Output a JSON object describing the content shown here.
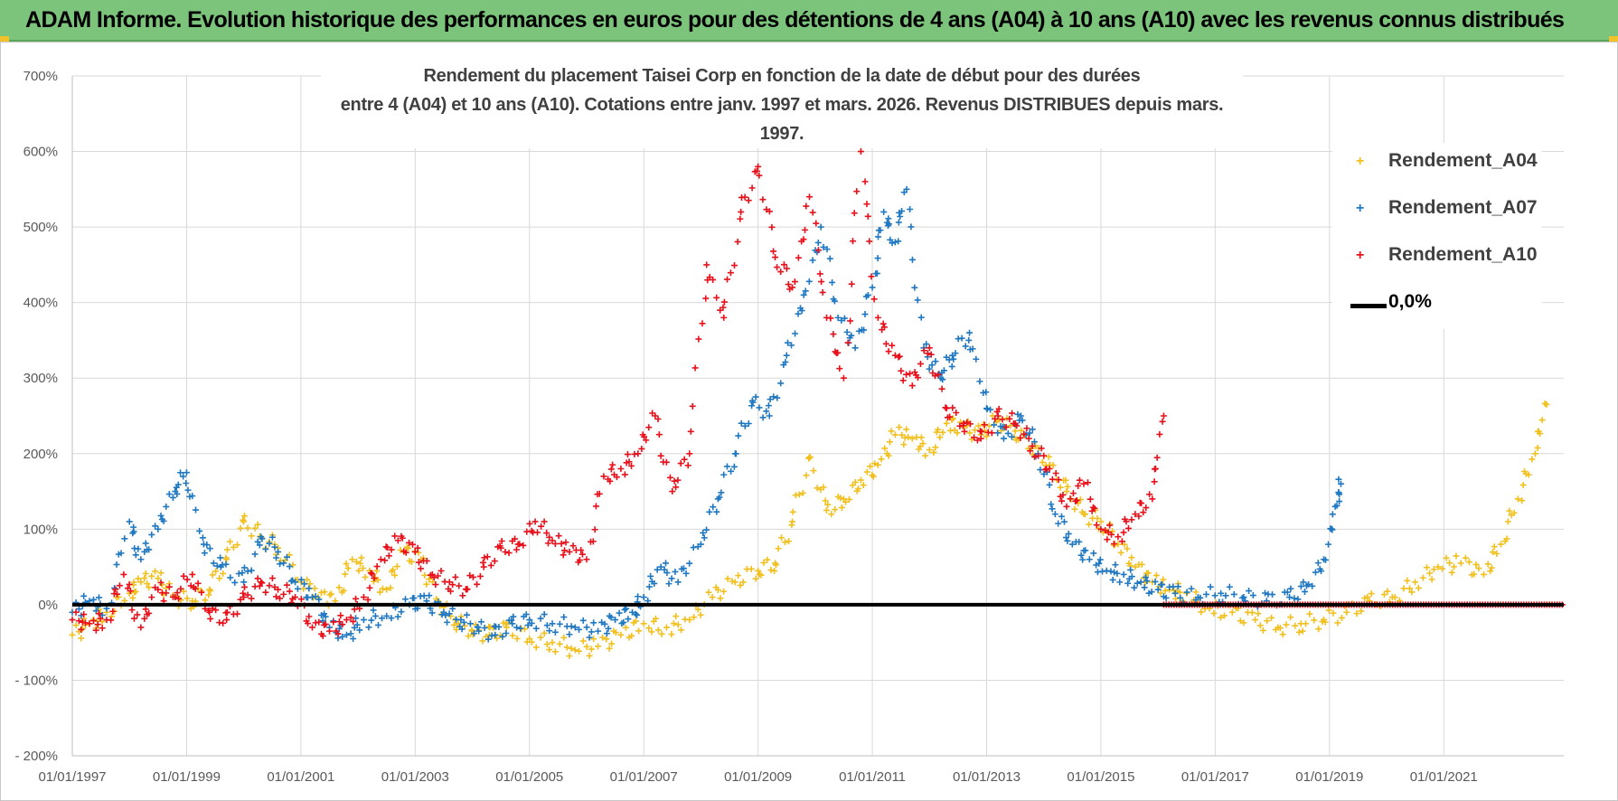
{
  "banner": {
    "title": "ADAM Informe. Evolution historique des performances en euros pour des détentions de 4 ans (A04) à 10 ans (A10) avec les revenus connus distribués"
  },
  "colors": {
    "banner_bg": "#7cc47c",
    "a04": "#f2c01e",
    "a07": "#1f78c1",
    "a10": "#e8101b",
    "zero": "#000000",
    "grid": "#d9d9d9"
  },
  "chart_data": {
    "type": "scatter",
    "title_line1": "Rendement du placement Taisei Corp en fonction de la date de début pour des durées",
    "title_line2": "entre 4 (A04) et 10 ans (A10). Cotations entre janv. 1997 et mars. 2026. Revenus DISTRIBUES depuis mars. 1997.",
    "x_unit": "year",
    "xlim": [
      1997.0,
      2023.1
    ],
    "ylim": [
      -200,
      700
    ],
    "y_ticks": [
      -200,
      -100,
      0,
      100,
      200,
      300,
      400,
      500,
      600,
      700
    ],
    "y_tick_labels": [
      "- 200%",
      "- 100%",
      "0%",
      "100%",
      "200%",
      "300%",
      "400%",
      "500%",
      "600%",
      "700%"
    ],
    "x_ticks": [
      1997,
      1999,
      2001,
      2003,
      2005,
      2007,
      2009,
      2011,
      2013,
      2015,
      2017,
      2019,
      2021
    ],
    "x_tick_labels": [
      "01/01/1997",
      "01/01/1999",
      "01/01/2001",
      "01/01/2003",
      "01/01/2005",
      "01/01/2007",
      "01/01/2009",
      "01/01/2011",
      "01/01/2013",
      "01/01/2015",
      "01/01/2017",
      "01/01/2019",
      "01/01/2021"
    ],
    "legend": [
      {
        "name": "Rendement_A04",
        "marker": "+"
      },
      {
        "name": "Rendement_A07",
        "marker": "+"
      },
      {
        "name": "Rendement_A10",
        "marker": "+"
      },
      {
        "name": "0,0%",
        "marker": "line"
      }
    ],
    "series": [
      {
        "name": "Rendement_A04",
        "x": [
          1997.0,
          1997.3,
          1997.6,
          1998.0,
          1998.2,
          1998.5,
          1998.8,
          1999.1,
          1999.4,
          1999.7,
          2000.0,
          2000.3,
          2000.6,
          2001.0,
          2001.3,
          2001.6,
          2001.9,
          2002.2,
          2002.5,
          2002.8,
          2003.1,
          2003.4,
          2003.7,
          2004.0,
          2004.3,
          2004.6,
          2005.0,
          2005.4,
          2005.8,
          2006.2,
          2006.6,
          2007.0,
          2007.4,
          2007.8,
          2008.2,
          2008.6,
          2009.0,
          2009.3,
          2009.6,
          2009.9,
          2010.2,
          2010.5,
          2010.8,
          2011.1,
          2011.4,
          2011.7,
          2012.0,
          2012.3,
          2012.6,
          2012.9,
          2013.2,
          2013.5,
          2013.8,
          2014.1,
          2014.4,
          2014.7,
          2015.0,
          2015.3,
          2015.6,
          2015.9,
          2016.2,
          2016.5,
          2016.9,
          2017.3,
          2017.7,
          2018.1,
          2018.5,
          2018.9,
          2019.3,
          2019.7,
          2020.1,
          2020.5,
          2020.9,
          2021.3,
          2021.7,
          2022.0,
          2022.3,
          2022.6,
          2022.8
        ],
        "values": [
          -40,
          -25,
          -10,
          15,
          30,
          35,
          10,
          5,
          20,
          60,
          110,
          90,
          75,
          30,
          10,
          5,
          60,
          45,
          20,
          70,
          60,
          5,
          -20,
          -35,
          -40,
          -30,
          -45,
          -50,
          -60,
          -55,
          -40,
          -25,
          -30,
          -20,
          10,
          30,
          45,
          55,
          110,
          195,
          125,
          140,
          165,
          185,
          225,
          220,
          205,
          240,
          235,
          225,
          245,
          230,
          210,
          185,
          150,
          120,
          110,
          80,
          50,
          30,
          20,
          15,
          -5,
          -10,
          -20,
          -30,
          -25,
          -20,
          -10,
          5,
          10,
          30,
          50,
          55,
          40,
          80,
          140,
          200,
          265
        ]
      },
      {
        "name": "Rendement_A07",
        "x": [
          1997.0,
          1997.3,
          1997.6,
          1998.0,
          1998.2,
          1998.5,
          1998.8,
          1999.0,
          1999.3,
          1999.6,
          2000.0,
          2000.3,
          2000.6,
          2000.9,
          2001.2,
          2001.5,
          2001.8,
          2002.1,
          2002.5,
          2002.9,
          2003.2,
          2003.5,
          2003.8,
          2004.1,
          2004.4,
          2004.7,
          2005.0,
          2005.4,
          2005.8,
          2006.2,
          2006.5,
          2006.8,
          2007.0,
          2007.3,
          2007.6,
          2008.0,
          2008.3,
          2008.6,
          2008.9,
          2009.2,
          2009.5,
          2009.8,
          2010.1,
          2010.4,
          2010.7,
          2011.0,
          2011.2,
          2011.4,
          2011.6,
          2011.9,
          2012.2,
          2012.4,
          2012.7,
          2013.0,
          2013.3,
          2013.6,
          2013.9,
          2014.2,
          2014.5,
          2014.8,
          2015.1,
          2015.4,
          2015.7,
          2016.0,
          2016.3,
          2016.7,
          2017.1,
          2017.5,
          2017.9,
          2018.3,
          2018.6,
          2018.9,
          2019.1,
          2019.2
        ],
        "values": [
          -10,
          5,
          -5,
          110,
          60,
          100,
          150,
          175,
          80,
          50,
          30,
          90,
          70,
          30,
          10,
          -30,
          -40,
          -20,
          -15,
          0,
          5,
          -10,
          -20,
          -30,
          -40,
          -25,
          -20,
          -25,
          -30,
          -35,
          -20,
          -10,
          10,
          50,
          30,
          80,
          140,
          200,
          270,
          250,
          330,
          410,
          500,
          380,
          340,
          420,
          520,
          480,
          550,
          340,
          300,
          330,
          360,
          260,
          220,
          250,
          200,
          120,
          80,
          60,
          45,
          40,
          30,
          20,
          15,
          10,
          15,
          10,
          5,
          10,
          25,
          60,
          130,
          160
        ]
      },
      {
        "name": "Rendement_A10",
        "x": [
          1997.0,
          1997.3,
          1997.6,
          1997.9,
          1998.2,
          1998.5,
          1998.8,
          1999.1,
          1999.4,
          1999.7,
          2000.0,
          2000.3,
          2000.6,
          2000.9,
          2001.2,
          2001.5,
          2001.8,
          2002.1,
          2002.4,
          2002.7,
          2003.0,
          2003.3,
          2003.6,
          2003.9,
          2004.2,
          2004.5,
          2004.8,
          2005.1,
          2005.4,
          2005.7,
          2006.0,
          2006.3,
          2006.6,
          2006.9,
          2007.2,
          2007.5,
          2007.8,
          2008.1,
          2008.4,
          2008.7,
          2009.0,
          2009.3,
          2009.6,
          2009.9,
          2010.2,
          2010.5,
          2010.8,
          2011.1,
          2011.4,
          2011.7,
          2012.0,
          2012.3,
          2012.6,
          2012.9,
          2013.2,
          2013.5,
          2013.8,
          2014.1,
          2014.4,
          2014.7,
          2015.0,
          2015.3,
          2015.6,
          2015.9,
          2016.1
        ],
        "values": [
          -20,
          -25,
          -20,
          40,
          -30,
          20,
          10,
          40,
          -10,
          -20,
          10,
          30,
          20,
          10,
          -30,
          -35,
          -20,
          10,
          60,
          85,
          70,
          40,
          30,
          20,
          50,
          75,
          80,
          110,
          85,
          70,
          60,
          170,
          180,
          200,
          250,
          150,
          200,
          450,
          380,
          520,
          580,
          460,
          420,
          540,
          380,
          300,
          600,
          380,
          330,
          290,
          340,
          260,
          240,
          220,
          250,
          240,
          210,
          180,
          130,
          160,
          100,
          90,
          120,
          140,
          250
        ]
      },
      {
        "name": "0,0%",
        "x": [
          1997.0,
          2023.1
        ],
        "values": [
          0,
          0
        ]
      }
    ]
  }
}
